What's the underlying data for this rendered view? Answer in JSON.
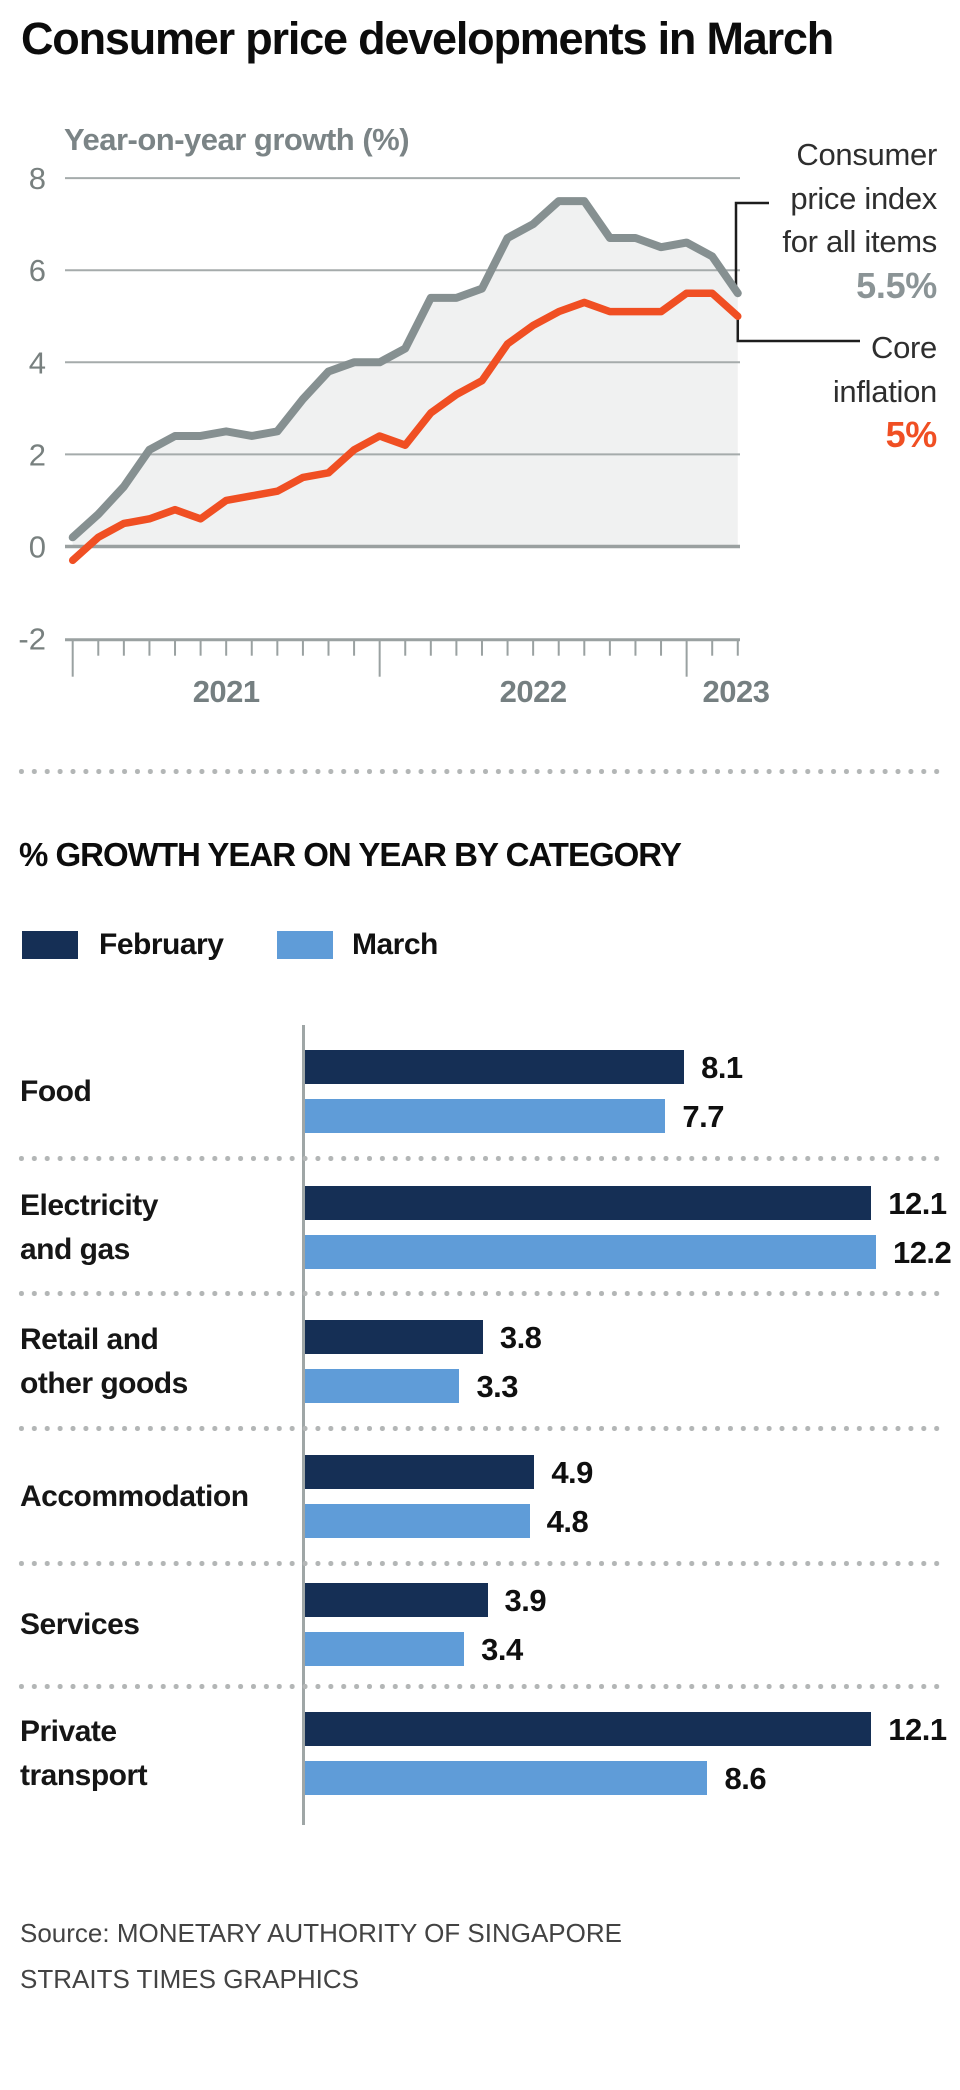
{
  "header": {
    "title": "Consumer price developments in March"
  },
  "chart_data": [
    {
      "type": "line",
      "title": "Year-on-year growth (%)",
      "x_start": "Jan 2021",
      "x_end": "Mar 2023",
      "x_frequency": "monthly",
      "x_year_labels": [
        "2021",
        "2022",
        "2023"
      ],
      "ylim": [
        -2,
        8
      ],
      "yticks": [
        8,
        6,
        4,
        2,
        0,
        -2
      ],
      "grid": true,
      "series": [
        {
          "name": "Consumer price index for all items",
          "color": "#869091",
          "values": [
            0.2,
            0.7,
            1.3,
            2.1,
            2.4,
            2.4,
            2.5,
            2.4,
            2.5,
            3.2,
            3.8,
            4.0,
            4.0,
            4.3,
            5.4,
            5.4,
            5.6,
            6.7,
            7.0,
            7.5,
            7.5,
            6.7,
            6.7,
            6.5,
            6.6,
            6.3,
            5.5
          ]
        },
        {
          "name": "Core inflation",
          "color": "#f04f23",
          "values": [
            -0.3,
            0.2,
            0.5,
            0.6,
            0.8,
            0.6,
            1.0,
            1.1,
            1.2,
            1.5,
            1.6,
            2.1,
            2.4,
            2.2,
            2.9,
            3.3,
            3.6,
            4.4,
            4.8,
            5.1,
            5.3,
            5.1,
            5.1,
            5.1,
            5.5,
            5.5,
            5.0
          ]
        }
      ],
      "annotations": [
        {
          "lines": [
            "Consumer",
            "price index",
            "for all items"
          ],
          "value": "5.5%",
          "color": "#8b9496"
        },
        {
          "lines": [
            "Core",
            "inflation"
          ],
          "value": "5%",
          "color": "#f04f23"
        }
      ]
    },
    {
      "type": "bar",
      "title": "% GROWTH YEAR ON YEAR BY CATEGORY",
      "orientation": "horizontal",
      "categories": [
        "Food",
        "Electricity and gas",
        "Retail and other goods",
        "Accommodation",
        "Services",
        "Private transport"
      ],
      "category_label_lines": [
        [
          "Food"
        ],
        [
          "Electricity",
          "and gas"
        ],
        [
          "Retail and",
          "other goods"
        ],
        [
          "Accommodation"
        ],
        [
          "Services"
        ],
        [
          "Private",
          "transport"
        ]
      ],
      "series": [
        {
          "name": "February",
          "color": "#152f55",
          "values": [
            8.1,
            12.1,
            3.8,
            4.9,
            3.9,
            12.1
          ]
        },
        {
          "name": "March",
          "color": "#5f9cd8",
          "values": [
            7.7,
            12.2,
            3.3,
            4.8,
            3.4,
            8.6
          ]
        }
      ]
    }
  ],
  "source": {
    "line1": "Source: MONETARY AUTHORITY OF SINGAPORE",
    "line2": "STRAITS TIMES GRAPHICS"
  }
}
